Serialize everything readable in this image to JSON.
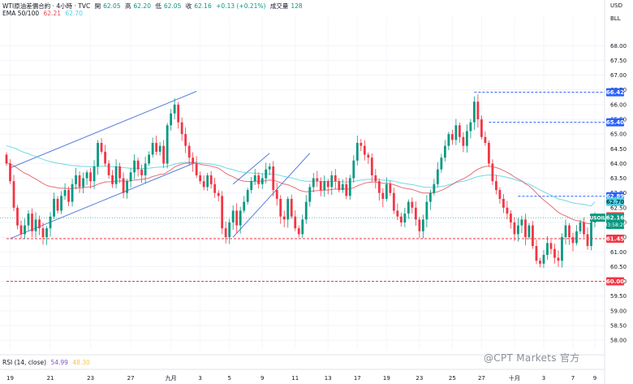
{
  "header": {
    "symbol": "WTI原油差價合約 · 4小時 · TVC",
    "open_label": "開",
    "open": "62.05",
    "high_label": "高",
    "high": "62.20",
    "low_label": "低",
    "low": "62.05",
    "close_label": "收",
    "close": "62.16",
    "change": "+0.13 (+0.21%)",
    "volume_label": "成交量",
    "volume": "128",
    "ema_label": "EMA 50/100",
    "ema50": "62.21",
    "ema100": "62.70",
    "rsi_label": "RSI (14, close)",
    "rsi": "54.99",
    "rsi_ma": "48.30"
  },
  "axis_unit": {
    "currency": "USD",
    "unit": "BLL"
  },
  "watermark": "@CPT Markets 官方",
  "colors": {
    "up": "#089981",
    "down": "#f23645",
    "ema50": "#e04b55",
    "ema100": "#4dd0e1",
    "channel": "#5b7fe0",
    "blue_level": "#2962ff",
    "red_level": "#f23645"
  },
  "chart_data": {
    "type": "candlestick",
    "title": "WTI原油差價合約 · 4小時 · TVC",
    "ylim": [
      57.7,
      69.0
    ],
    "y_ticks": [
      "68.00",
      "67.50",
      "67.00",
      "66.50",
      "66.00",
      "65.50",
      "65.00",
      "64.50",
      "64.00",
      "63.50",
      "63.00",
      "62.50",
      "62.00",
      "61.50",
      "61.00",
      "60.50",
      "60.00",
      "59.50",
      "59.00",
      "58.50",
      "58.00"
    ],
    "x_ticks": [
      {
        "i": 1,
        "label": "19"
      },
      {
        "i": 12,
        "label": "21"
      },
      {
        "i": 23,
        "label": "23"
      },
      {
        "i": 34,
        "label": "27"
      },
      {
        "i": 45,
        "label": "九月"
      },
      {
        "i": 53,
        "label": "3"
      },
      {
        "i": 61,
        "label": "5"
      },
      {
        "i": 70,
        "label": "9"
      },
      {
        "i": 79,
        "label": "11"
      },
      {
        "i": 88,
        "label": "13"
      },
      {
        "i": 96,
        "label": "17"
      },
      {
        "i": 104,
        "label": "19"
      },
      {
        "i": 113,
        "label": "23"
      },
      {
        "i": 122,
        "label": "25"
      },
      {
        "i": 130,
        "label": "27"
      },
      {
        "i": 139,
        "label": "十月"
      },
      {
        "i": 147,
        "label": "3"
      },
      {
        "i": 155,
        "label": "7"
      },
      {
        "i": 161,
        "label": "9"
      }
    ],
    "closes": [
      64.0,
      63.4,
      62.5,
      61.9,
      61.6,
      61.9,
      62.3,
      61.7,
      62.1,
      61.8,
      61.5,
      61.8,
      62.2,
      62.8,
      62.4,
      62.9,
      63.1,
      62.7,
      63.3,
      63.6,
      63.2,
      63.5,
      63.7,
      63.4,
      63.9,
      64.7,
      64.4,
      64.0,
      63.6,
      63.3,
      63.9,
      63.5,
      63.0,
      63.4,
      63.7,
      64.1,
      63.8,
      63.6,
      64.0,
      64.3,
      64.7,
      64.4,
      64.6,
      64.0,
      65.3,
      65.7,
      66.0,
      65.4,
      65.0,
      64.6,
      64.2,
      64.0,
      63.6,
      63.4,
      63.2,
      63.6,
      63.3,
      63.0,
      62.9,
      61.8,
      61.5,
      62.0,
      62.4,
      61.9,
      62.4,
      62.7,
      63.1,
      63.4,
      63.6,
      63.3,
      63.5,
      63.8,
      63.9,
      63.1,
      62.8,
      62.2,
      62.1,
      62.8,
      62.2,
      61.8,
      61.6,
      62.1,
      62.7,
      63.2,
      63.5,
      63.4,
      63.1,
      63.4,
      63.2,
      63.6,
      63.4,
      63.1,
      63.3,
      62.9,
      63.5,
      64.1,
      64.7,
      64.6,
      64.3,
      64.2,
      63.6,
      63.4,
      63.0,
      62.8,
      63.3,
      63.0,
      62.4,
      62.2,
      62.0,
      62.3,
      62.7,
      62.5,
      62.1,
      61.7,
      62.1,
      62.7,
      63.0,
      63.3,
      63.8,
      64.2,
      64.6,
      65.0,
      64.8,
      65.3,
      64.9,
      64.6,
      65.1,
      65.4,
      66.1,
      65.5,
      64.9,
      64.7,
      64.0,
      63.4,
      63.1,
      62.8,
      62.5,
      62.3,
      62.0,
      61.6,
      61.9,
      62.1,
      61.5,
      61.9,
      61.2,
      60.7,
      60.6,
      60.9,
      61.3,
      61.1,
      60.8,
      60.7,
      61.5,
      61.9,
      61.5,
      61.3,
      61.7,
      62.0,
      61.6,
      61.2,
      62.0,
      62.16
    ],
    "ema50": [
      64.02,
      63.99,
      63.92,
      63.84,
      63.75,
      63.67,
      63.62,
      63.54,
      63.47,
      63.4,
      63.32,
      63.26,
      63.22,
      63.2,
      63.17,
      63.16,
      63.16,
      63.14,
      63.15,
      63.17,
      63.17,
      63.18,
      63.2,
      63.21,
      63.24,
      63.3,
      63.34,
      63.37,
      63.38,
      63.38,
      63.4,
      63.41,
      63.4,
      63.4,
      63.41,
      63.44,
      63.45,
      63.46,
      63.48,
      63.51,
      63.56,
      63.59,
      63.63,
      63.64,
      63.71,
      63.79,
      63.88,
      63.94,
      63.98,
      64.01,
      64.02,
      64.02,
      64.0,
      63.98,
      63.95,
      63.94,
      63.91,
      63.88,
      63.84,
      63.76,
      63.67,
      63.6,
      63.55,
      63.48,
      63.43,
      63.4,
      63.39,
      63.39,
      63.4,
      63.4,
      63.4,
      63.42,
      63.44,
      63.43,
      63.4,
      63.35,
      63.3,
      63.28,
      63.23,
      63.17,
      63.1,
      63.06,
      63.04,
      63.05,
      63.07,
      63.08,
      63.08,
      63.1,
      63.1,
      63.12,
      63.13,
      63.13,
      63.14,
      63.13,
      63.14,
      63.18,
      63.24,
      63.29,
      63.33,
      63.36,
      63.37,
      63.37,
      63.36,
      63.33,
      63.33,
      63.32,
      63.28,
      63.24,
      63.19,
      63.16,
      63.14,
      63.12,
      63.08,
      63.03,
      63.0,
      63.0,
      63.0,
      63.01,
      63.04,
      63.09,
      63.15,
      63.22,
      63.29,
      63.37,
      63.43,
      63.48,
      63.55,
      63.63,
      63.73,
      63.81,
      63.86,
      63.9,
      63.91,
      63.89,
      63.86,
      63.82,
      63.76,
      63.7,
      63.63,
      63.54,
      63.47,
      63.41,
      63.31,
      63.24,
      63.13,
      63.0,
      62.87,
      62.76,
      62.66,
      62.56,
      62.45,
      62.34,
      62.27,
      62.22,
      62.16,
      62.1,
      62.06,
      62.04,
      62.0,
      61.96,
      61.96,
      62.21
    ],
    "ema100": [
      64.6,
      64.57,
      64.53,
      64.48,
      64.42,
      64.37,
      64.33,
      64.28,
      64.24,
      64.19,
      64.14,
      64.1,
      64.06,
      64.04,
      64.01,
      63.99,
      63.97,
      63.95,
      63.93,
      63.93,
      63.91,
      63.9,
      63.9,
      63.89,
      63.89,
      63.9,
      63.91,
      63.91,
      63.9,
      63.89,
      63.89,
      63.88,
      63.86,
      63.85,
      63.84,
      63.84,
      63.84,
      63.83,
      63.84,
      63.84,
      63.86,
      63.87,
      63.88,
      63.88,
      63.91,
      63.94,
      63.98,
      64.01,
      64.03,
      64.04,
      64.04,
      64.04,
      64.04,
      64.02,
      64.01,
      64.0,
      63.98,
      63.96,
      63.94,
      63.9,
      63.85,
      63.82,
      63.79,
      63.75,
      63.72,
      63.7,
      63.68,
      63.68,
      63.67,
      63.66,
      63.65,
      63.65,
      63.65,
      63.64,
      63.62,
      63.59,
      63.56,
      63.54,
      63.51,
      63.48,
      63.44,
      63.42,
      63.4,
      63.4,
      63.4,
      63.4,
      63.39,
      63.39,
      63.39,
      63.39,
      63.39,
      63.39,
      63.38,
      63.37,
      63.38,
      63.39,
      63.42,
      63.44,
      63.45,
      63.46,
      63.46,
      63.46,
      63.45,
      63.44,
      63.43,
      63.42,
      63.4,
      63.37,
      63.34,
      63.32,
      63.3,
      63.28,
      63.26,
      63.23,
      63.2,
      63.19,
      63.19,
      63.18,
      63.2,
      63.22,
      63.24,
      63.28,
      63.31,
      63.35,
      63.38,
      63.4,
      63.43,
      63.47,
      63.52,
      63.56,
      63.58,
      63.6,
      63.61,
      63.61,
      63.6,
      63.58,
      63.56,
      63.53,
      63.5,
      63.46,
      63.42,
      63.39,
      63.34,
      63.3,
      63.24,
      63.17,
      63.1,
      63.04,
      62.98,
      62.92,
      62.86,
      62.8,
      62.77,
      62.74,
      62.7,
      62.66,
      62.64,
      62.63,
      62.61,
      62.58,
      62.56,
      62.7
    ]
  },
  "channels": [
    {
      "from": [
        1,
        61.45
      ],
      "to": [
        52,
        64.05
      ]
    },
    {
      "from": [
        1,
        63.85
      ],
      "to": [
        52,
        66.45
      ]
    },
    {
      "from": [
        62,
        61.5
      ],
      "to": [
        83,
        64.35
      ]
    },
    {
      "from": [
        62,
        63.3
      ],
      "to": [
        72,
        64.35
      ]
    }
  ],
  "price_levels": [
    {
      "value": 66.42,
      "label": "66.42",
      "style": "blue",
      "from": 128
    },
    {
      "value": 65.4,
      "label": "65.40",
      "style": "blue",
      "from": 132
    },
    {
      "value": 62.89,
      "label": "62.89",
      "style": "blue",
      "from": 140
    },
    {
      "value": 61.45,
      "label": "61.45",
      "style": "red",
      "from": 0
    },
    {
      "value": 60.0,
      "label": "60.00",
      "style": "red",
      "from": 0
    }
  ],
  "tags": [
    {
      "value": 62.7,
      "label": "62.70",
      "kind": "ema100"
    },
    {
      "value": 62.21,
      "label": "62.21",
      "kind": "ema50"
    }
  ],
  "current": {
    "symbol": "USOIL",
    "value": 62.16,
    "label": "62.16",
    "countdown": "03:58:29"
  }
}
